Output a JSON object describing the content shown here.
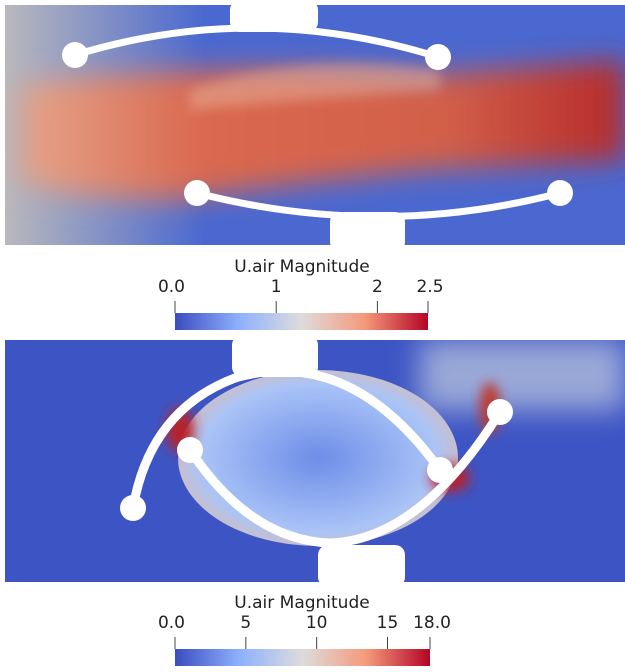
{
  "panels": [
    {
      "colorbar": {
        "title": "U.air Magnitude",
        "range": [
          0,
          2.5
        ],
        "ticks": [
          {
            "value": 0,
            "label": "0.0"
          },
          1,
          2,
          {
            "value": 2.5,
            "label": "2.5"
          }
        ]
      }
    },
    {
      "colorbar": {
        "title": "U.air Magnitude",
        "range": [
          0,
          18
        ],
        "ticks": [
          {
            "value": 0,
            "label": "0.0"
          },
          5,
          10,
          15,
          {
            "value": 18,
            "label": "18.0"
          }
        ]
      }
    }
  ]
}
